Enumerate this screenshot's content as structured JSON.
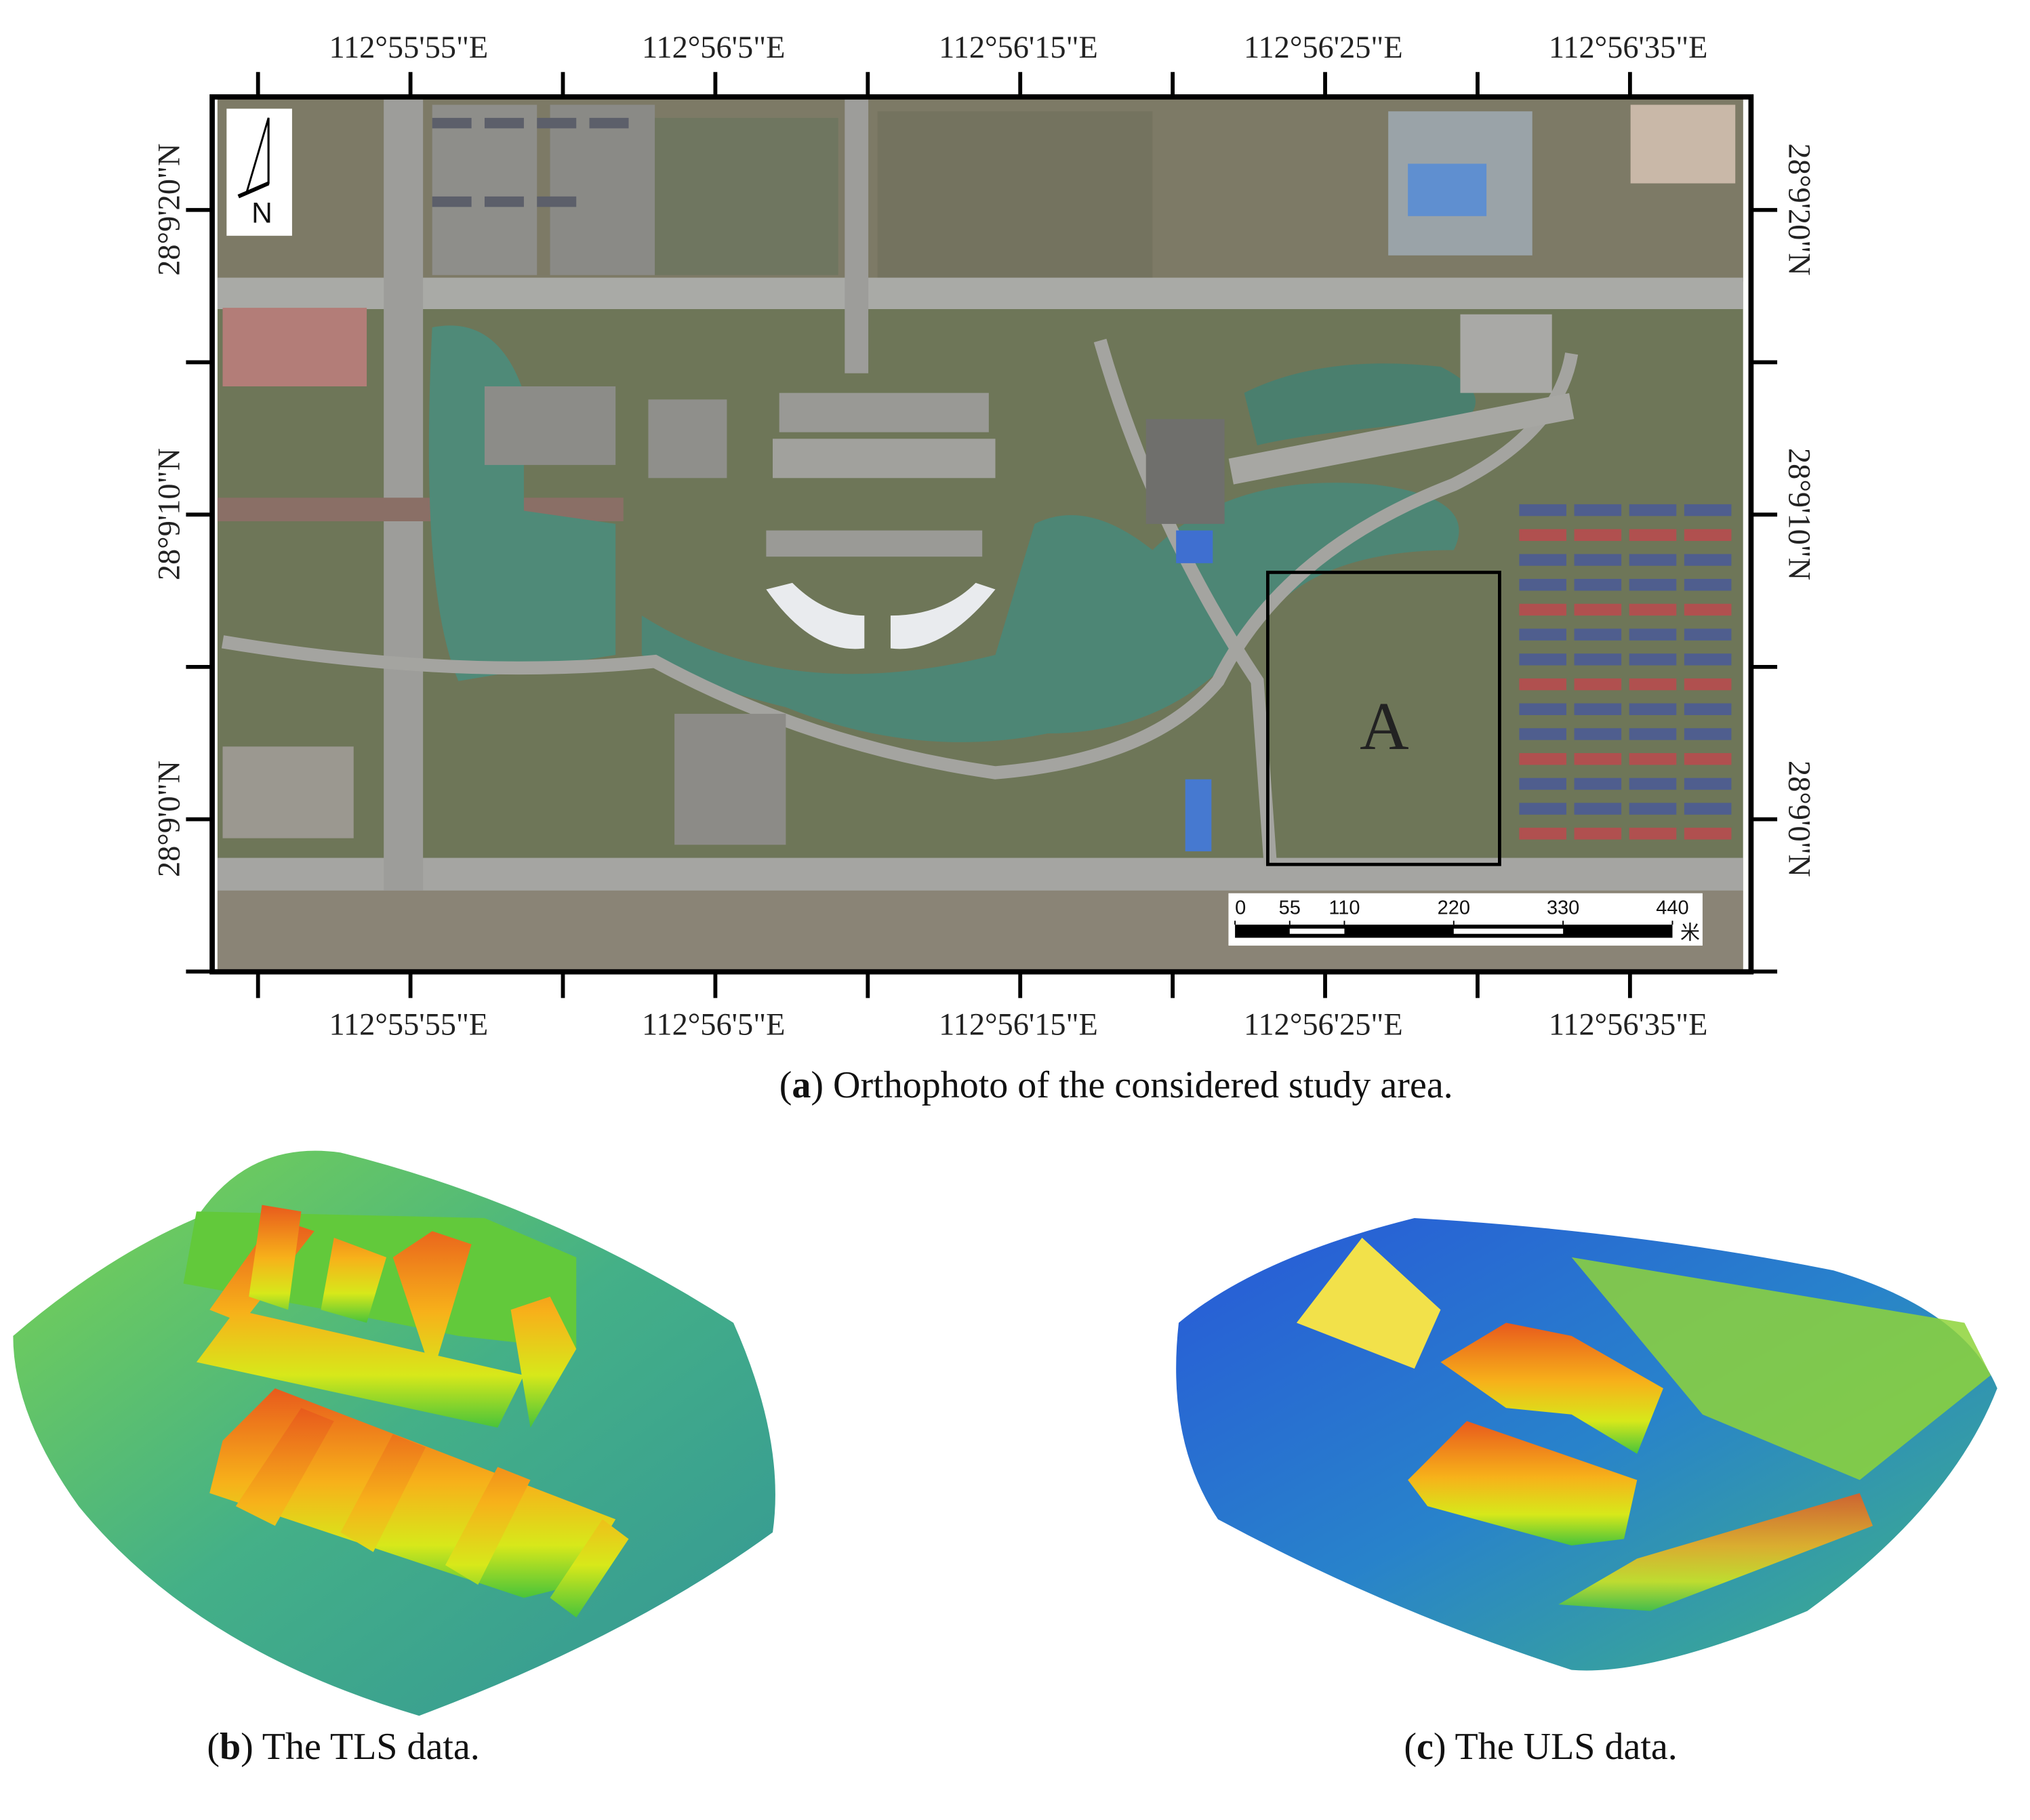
{
  "map": {
    "longitude_labels": [
      "112°55'55\"E",
      "112°56'5\"E",
      "112°56'15\"E",
      "112°56'25\"E",
      "112°56'35\"E"
    ],
    "latitude_labels": [
      "28°9'20\"N",
      "28°9'10\"N",
      "28°9'0\"N"
    ],
    "scale_labels": [
      0,
      55,
      110,
      220,
      330,
      440
    ],
    "scale_unit": "米",
    "region_label": "A",
    "north_label": "N"
  },
  "captions": [
    {
      "open": "(",
      "label": "a",
      "text": ") Orthophoto of the considered study area."
    },
    {
      "open": "(",
      "label": "b",
      "text": ") The TLS data."
    },
    {
      "open": "(",
      "label": "c",
      "text": ") The ULS data."
    }
  ]
}
